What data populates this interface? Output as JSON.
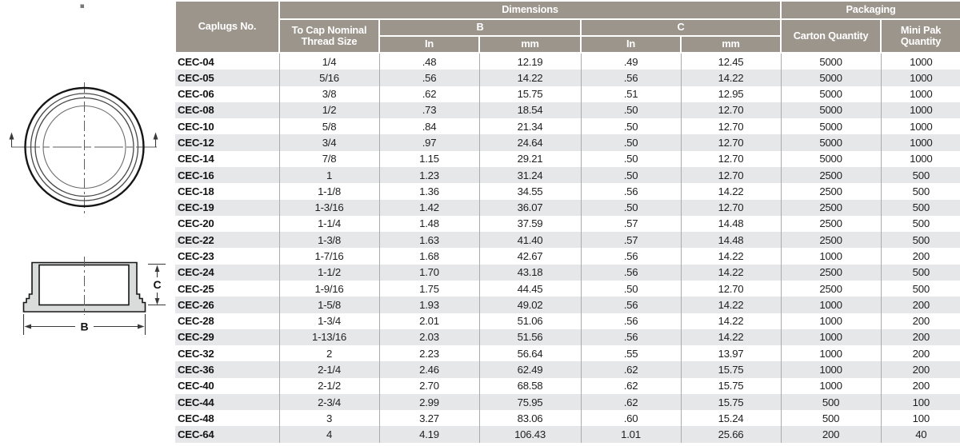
{
  "colors": {
    "header_bg": "#9C958C",
    "row_stripe": "#E6E7E8"
  },
  "diagram": {
    "label_b": "B",
    "label_c": "C"
  },
  "table": {
    "header": {
      "caplugs_no": "Caplugs No.",
      "thread_size": "To Cap Nominal Thread Size",
      "dimensions": "Dimensions",
      "packaging": "Packaging",
      "b": "B",
      "c": "C",
      "b_in": "In",
      "b_mm": "mm",
      "c_in": "In",
      "c_mm": "mm",
      "carton_qty": "Carton Quantity",
      "mini_pak_qty": "Mini Pak Quantity"
    },
    "rows": [
      {
        "no": "CEC-04",
        "thread": "1/4",
        "b_in": ".48",
        "b_mm": "12.19",
        "c_in": ".49",
        "c_mm": "12.45",
        "carton": "5000",
        "mini": "1000"
      },
      {
        "no": "CEC-05",
        "thread": "5/16",
        "b_in": ".56",
        "b_mm": "14.22",
        "c_in": ".56",
        "c_mm": "14.22",
        "carton": "5000",
        "mini": "1000"
      },
      {
        "no": "CEC-06",
        "thread": "3/8",
        "b_in": ".62",
        "b_mm": "15.75",
        "c_in": ".51",
        "c_mm": "12.95",
        "carton": "5000",
        "mini": "1000"
      },
      {
        "no": "CEC-08",
        "thread": "1/2",
        "b_in": ".73",
        "b_mm": "18.54",
        "c_in": ".50",
        "c_mm": "12.70",
        "carton": "5000",
        "mini": "1000"
      },
      {
        "no": "CEC-10",
        "thread": "5/8",
        "b_in": ".84",
        "b_mm": "21.34",
        "c_in": ".50",
        "c_mm": "12.70",
        "carton": "5000",
        "mini": "1000"
      },
      {
        "no": "CEC-12",
        "thread": "3/4",
        "b_in": ".97",
        "b_mm": "24.64",
        "c_in": ".50",
        "c_mm": "12.70",
        "carton": "5000",
        "mini": "1000"
      },
      {
        "no": "CEC-14",
        "thread": "7/8",
        "b_in": "1.15",
        "b_mm": "29.21",
        "c_in": ".50",
        "c_mm": "12.70",
        "carton": "5000",
        "mini": "1000"
      },
      {
        "no": "CEC-16",
        "thread": "1",
        "b_in": "1.23",
        "b_mm": "31.24",
        "c_in": ".50",
        "c_mm": "12.70",
        "carton": "2500",
        "mini": "500"
      },
      {
        "no": "CEC-18",
        "thread": "1-1/8",
        "b_in": "1.36",
        "b_mm": "34.55",
        "c_in": ".56",
        "c_mm": "14.22",
        "carton": "2500",
        "mini": "500"
      },
      {
        "no": "CEC-19",
        "thread": "1-3/16",
        "b_in": "1.42",
        "b_mm": "36.07",
        "c_in": ".50",
        "c_mm": "12.70",
        "carton": "2500",
        "mini": "500"
      },
      {
        "no": "CEC-20",
        "thread": "1-1/4",
        "b_in": "1.48",
        "b_mm": "37.59",
        "c_in": ".57",
        "c_mm": "14.48",
        "carton": "2500",
        "mini": "500"
      },
      {
        "no": "CEC-22",
        "thread": "1-3/8",
        "b_in": "1.63",
        "b_mm": "41.40",
        "c_in": ".57",
        "c_mm": "14.48",
        "carton": "2500",
        "mini": "500"
      },
      {
        "no": "CEC-23",
        "thread": "1-7/16",
        "b_in": "1.68",
        "b_mm": "42.67",
        "c_in": ".56",
        "c_mm": "14.22",
        "carton": "1000",
        "mini": "200"
      },
      {
        "no": "CEC-24",
        "thread": "1-1/2",
        "b_in": "1.70",
        "b_mm": "43.18",
        "c_in": ".56",
        "c_mm": "14.22",
        "carton": "2500",
        "mini": "500"
      },
      {
        "no": "CEC-25",
        "thread": "1-9/16",
        "b_in": "1.75",
        "b_mm": "44.45",
        "c_in": ".50",
        "c_mm": "12.70",
        "carton": "2500",
        "mini": "500"
      },
      {
        "no": "CEC-26",
        "thread": "1-5/8",
        "b_in": "1.93",
        "b_mm": "49.02",
        "c_in": ".56",
        "c_mm": "14.22",
        "carton": "1000",
        "mini": "200"
      },
      {
        "no": "CEC-28",
        "thread": "1-3/4",
        "b_in": "2.01",
        "b_mm": "51.06",
        "c_in": ".56",
        "c_mm": "14.22",
        "carton": "1000",
        "mini": "200"
      },
      {
        "no": "CEC-29",
        "thread": "1-13/16",
        "b_in": "2.03",
        "b_mm": "51.56",
        "c_in": ".56",
        "c_mm": "14.22",
        "carton": "1000",
        "mini": "200"
      },
      {
        "no": "CEC-32",
        "thread": "2",
        "b_in": "2.23",
        "b_mm": "56.64",
        "c_in": ".55",
        "c_mm": "13.97",
        "carton": "1000",
        "mini": "200"
      },
      {
        "no": "CEC-36",
        "thread": "2-1/4",
        "b_in": "2.46",
        "b_mm": "62.49",
        "c_in": ".62",
        "c_mm": "15.75",
        "carton": "1000",
        "mini": "200"
      },
      {
        "no": "CEC-40",
        "thread": "2-1/2",
        "b_in": "2.70",
        "b_mm": "68.58",
        "c_in": ".62",
        "c_mm": "15.75",
        "carton": "1000",
        "mini": "200"
      },
      {
        "no": "CEC-44",
        "thread": "2-3/4",
        "b_in": "2.99",
        "b_mm": "75.95",
        "c_in": ".62",
        "c_mm": "15.75",
        "carton": "500",
        "mini": "100"
      },
      {
        "no": "CEC-48",
        "thread": "3",
        "b_in": "3.27",
        "b_mm": "83.06",
        "c_in": ".60",
        "c_mm": "15.24",
        "carton": "500",
        "mini": "100"
      },
      {
        "no": "CEC-64",
        "thread": "4",
        "b_in": "4.19",
        "b_mm": "106.43",
        "c_in": "1.01",
        "c_mm": "25.66",
        "carton": "200",
        "mini": "40"
      }
    ]
  }
}
